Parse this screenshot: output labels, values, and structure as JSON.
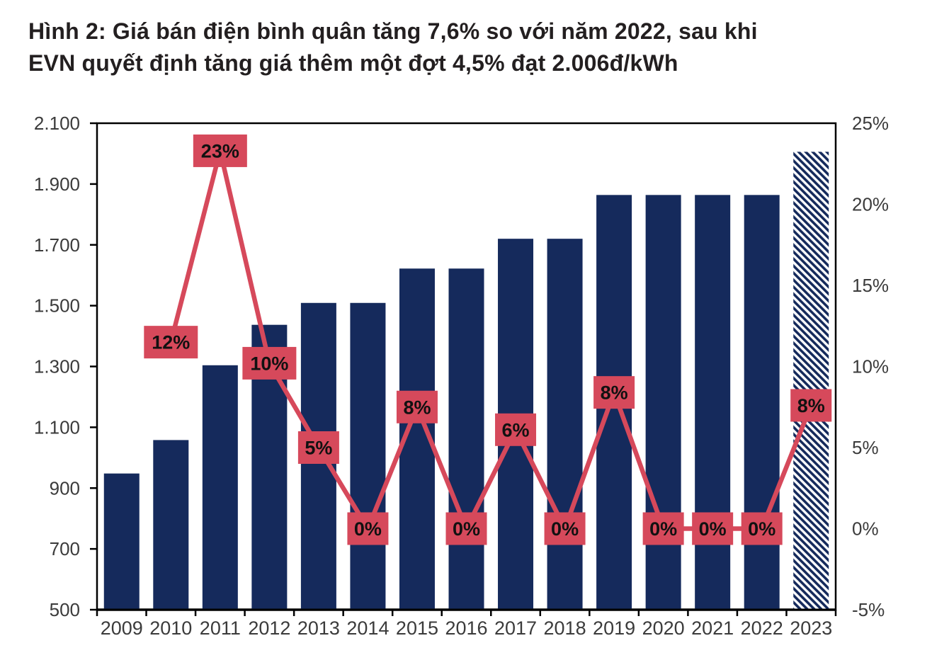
{
  "title": {
    "line1": "Hình 2: Giá bán điện bình quân tăng 7,6% so với năm 2022, sau khi",
    "line2": "EVN quyết định tăng giá thêm một đợt 4,5% đạt 2.006đ/kWh"
  },
  "colors": {
    "bar": "#152A5C",
    "line": "#D6495B",
    "label_bg": "#D6495B",
    "label_text": "#111111",
    "axis_text": "#3b3b3b",
    "frame": "#000000",
    "title_text": "#231f20",
    "background": "#ffffff"
  },
  "chart_data": {
    "type": "bar",
    "subtype": "combo-bar-line-dual-axis",
    "categories": [
      "2009",
      "2010",
      "2011",
      "2012",
      "2013",
      "2014",
      "2015",
      "2016",
      "2017",
      "2018",
      "2019",
      "2020",
      "2021",
      "2022",
      "2023"
    ],
    "series": [
      {
        "name": "bars",
        "type": "bar",
        "axis": "left",
        "values": [
          948,
          1058,
          1304,
          1437,
          1509,
          1509,
          1622,
          1622,
          1720,
          1720,
          1864,
          1864,
          1864,
          1864,
          2006
        ],
        "hatched": [
          false,
          false,
          false,
          false,
          false,
          false,
          false,
          false,
          false,
          false,
          false,
          false,
          false,
          false,
          true
        ]
      },
      {
        "name": "line",
        "type": "line",
        "axis": "right",
        "values": [
          null,
          11.5,
          23.3,
          10.2,
          5.0,
          0,
          7.5,
          0,
          6.1,
          0,
          8.4,
          0,
          0,
          0,
          7.6
        ],
        "point_labels": [
          null,
          "12%",
          "23%",
          "10%",
          "5%",
          "0%",
          "8%",
          "0%",
          "6%",
          "0%",
          "8%",
          "0%",
          "0%",
          "0%",
          "8%"
        ]
      }
    ],
    "left_axis": {
      "min": 500,
      "max": 2100,
      "tick_values": [
        2100,
        1900,
        1700,
        1500,
        1300,
        1100,
        900,
        700,
        500
      ],
      "tick_labels": [
        "2.100",
        "1.900",
        "1.700",
        "1.500",
        "1.300",
        "1.100",
        "900",
        "700",
        "500"
      ]
    },
    "right_axis": {
      "min": -5,
      "max": 25,
      "tick_values": [
        25,
        20,
        15,
        10,
        5,
        0,
        -5
      ],
      "tick_labels": [
        "25%",
        "20%",
        "15%",
        "10%",
        "5%",
        "0%",
        "-5%"
      ]
    },
    "grid": false,
    "legend": "none"
  }
}
